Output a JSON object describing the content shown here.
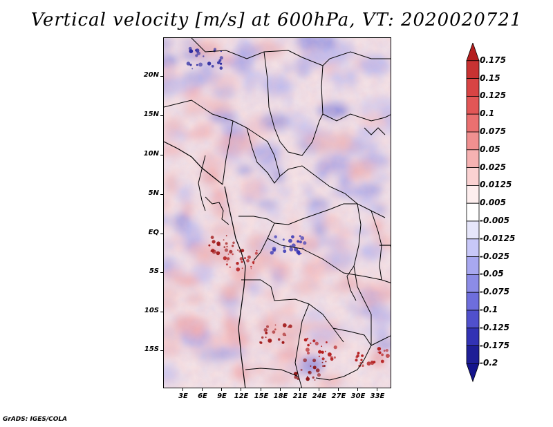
{
  "title": "Vertical velocity [m/s] at 600hPa, VT: 2020020721",
  "footer": "GrADS: IGES/COLA",
  "lat_labels": [
    "20N",
    "15N",
    "10N",
    "5N",
    "EQ",
    "5S",
    "10S",
    "15S"
  ],
  "lon_labels": [
    "3E",
    "6E",
    "9E",
    "12E",
    "15E",
    "18E",
    "21E",
    "24E",
    "27E",
    "30E",
    "33E"
  ],
  "colorbar": {
    "labels": [
      "0.175",
      "0.15",
      "0.125",
      "0.1",
      "0.075",
      "0.05",
      "0.025",
      "0.0125",
      "0.005",
      "-0.005",
      "-0.0125",
      "-0.025",
      "-0.05",
      "-0.075",
      "-0.1",
      "-0.125",
      "-0.175",
      "-0.2"
    ],
    "colors": [
      "#b41e1e",
      "#c83232",
      "#d84444",
      "#e25656",
      "#ea7070",
      "#f09090",
      "#f6b2b2",
      "#fad2d2",
      "#fdeeee",
      "#ffffff",
      "#e6e6fa",
      "#c8c8f8",
      "#a8a8f0",
      "#8c8ce6",
      "#6e6edc",
      "#5050cc",
      "#3232b4",
      "#1e1e96",
      "#14148c"
    ]
  },
  "colors": {
    "positive_strong": "#b41e1e",
    "negative_strong": "#14148c",
    "neutral": "#ffffff",
    "boundary_lines": "#000000"
  }
}
